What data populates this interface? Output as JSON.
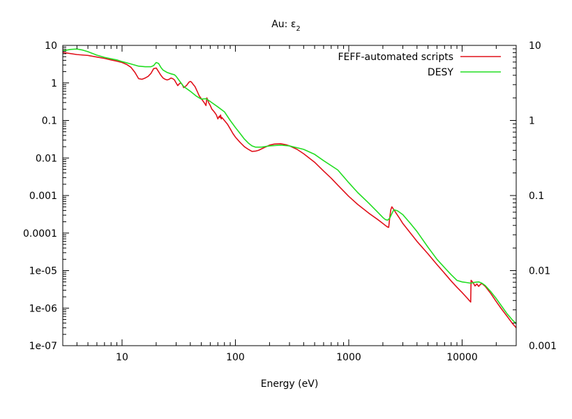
{
  "chart_data": {
    "type": "line",
    "title": "Au: ε",
    "title_subscript": "2",
    "xlabel": "Energy (eV)",
    "ylabel": "",
    "x_scale": "log",
    "y_scale": "log",
    "xlim": [
      3,
      30000
    ],
    "ylim": [
      1e-07,
      10
    ],
    "y2lim": [
      0.001,
      10
    ],
    "x_ticks": [
      {
        "value": 10,
        "label": "10"
      },
      {
        "value": 100,
        "label": "100"
      },
      {
        "value": 1000,
        "label": "1000"
      },
      {
        "value": 10000,
        "label": "10000"
      }
    ],
    "y_ticks": [
      {
        "value": 10,
        "label": "10"
      },
      {
        "value": 1,
        "label": "1"
      },
      {
        "value": 0.1,
        "label": "0.1"
      },
      {
        "value": 0.01,
        "label": "0.01"
      },
      {
        "value": 0.001,
        "label": "0.001"
      },
      {
        "value": 0.0001,
        "label": "0.0001"
      },
      {
        "value": 1e-05,
        "label": "1e-05"
      },
      {
        "value": 1e-06,
        "label": "1e-06"
      },
      {
        "value": 1e-07,
        "label": "1e-07"
      }
    ],
    "y2_ticks": [
      {
        "value": 10,
        "label": "10"
      },
      {
        "value": 1,
        "label": "1"
      },
      {
        "value": 0.1,
        "label": "0.1"
      },
      {
        "value": 0.01,
        "label": "0.01"
      },
      {
        "value": 0.001,
        "label": "0.001"
      }
    ],
    "legend_position": "top-right",
    "grid": false,
    "series": [
      {
        "name": "FEFF-automated scripts",
        "color": "#e0101a",
        "x": [
          3,
          4,
          5,
          6,
          7,
          8,
          9,
          10,
          11,
          12,
          13,
          14,
          15,
          16,
          17,
          18,
          19,
          20,
          21,
          22,
          23,
          24,
          25,
          26,
          27,
          28,
          29,
          30,
          31,
          32,
          33,
          34,
          35,
          36,
          37,
          38,
          39,
          40,
          41,
          42,
          44,
          46,
          48,
          50,
          53,
          55,
          56,
          57,
          58,
          60,
          62,
          64,
          66,
          68,
          70,
          72,
          73,
          74,
          75,
          76,
          80,
          85,
          90,
          95,
          100,
          110,
          120,
          130,
          140,
          150,
          160,
          180,
          200,
          220,
          250,
          280,
          300,
          350,
          400,
          500,
          600,
          700,
          800,
          1000,
          1200,
          1500,
          1800,
          2000,
          2100,
          2200,
          2250,
          2300,
          2350,
          2400,
          2500,
          2600,
          2800,
          3000,
          3500,
          4000,
          5000,
          6000,
          7000,
          8000,
          9000,
          10000,
          11000,
          11800,
          11900,
          12000,
          12500,
          13000,
          13500,
          14000,
          14500,
          15000,
          16000,
          18000,
          20000,
          22000,
          25000,
          28000,
          30000
        ],
        "y": [
          6.5,
          5.7,
          5.4,
          4.9,
          4.5,
          4.1,
          3.8,
          3.5,
          3.1,
          2.6,
          1.9,
          1.3,
          1.25,
          1.35,
          1.5,
          1.8,
          2.4,
          2.5,
          2.0,
          1.6,
          1.35,
          1.25,
          1.2,
          1.25,
          1.35,
          1.3,
          1.2,
          1.0,
          0.85,
          0.95,
          1.0,
          0.9,
          0.75,
          0.8,
          0.85,
          0.95,
          1.05,
          1.1,
          1.05,
          0.95,
          0.8,
          0.6,
          0.45,
          0.38,
          0.3,
          0.25,
          0.4,
          0.35,
          0.3,
          0.25,
          0.2,
          0.18,
          0.16,
          0.14,
          0.11,
          0.13,
          0.12,
          0.14,
          0.11,
          0.12,
          0.1,
          0.08,
          0.06,
          0.045,
          0.036,
          0.026,
          0.02,
          0.017,
          0.015,
          0.0152,
          0.016,
          0.019,
          0.022,
          0.0235,
          0.024,
          0.0225,
          0.021,
          0.017,
          0.013,
          0.0077,
          0.0045,
          0.0029,
          0.0019,
          0.00095,
          0.00058,
          0.00034,
          0.00023,
          0.00018,
          0.00016,
          0.000145,
          0.000142,
          0.00026,
          0.00042,
          0.0005,
          0.00042,
          0.00035,
          0.00025,
          0.00018,
          0.0001,
          6e-05,
          2.8e-05,
          1.45e-05,
          8.5e-06,
          5.3e-06,
          3.6e-06,
          2.6e-06,
          1.9e-06,
          1.5e-06,
          1.45e-06,
          5.5e-06,
          4.8e-06,
          3.9e-06,
          4.4e-06,
          3.8e-06,
          4.3e-06,
          4.5e-06,
          3.8e-06,
          2.4e-06,
          1.5e-06,
          1e-06,
          6e-07,
          3.8e-07,
          3e-07
        ]
      },
      {
        "name": "DESY",
        "color": "#22dd22",
        "x": [
          3,
          3.5,
          4,
          4.5,
          5,
          6,
          7,
          8,
          9,
          10,
          12,
          14,
          16,
          18,
          19,
          20,
          21,
          22,
          23,
          25,
          27,
          29,
          30,
          32,
          35,
          40,
          45,
          50,
          55,
          60,
          70,
          80,
          90,
          100,
          110,
          120,
          130,
          140,
          150,
          170,
          200,
          250,
          300,
          400,
          500,
          600,
          800,
          1000,
          1200,
          1500,
          1800,
          2000,
          2100,
          2200,
          2300,
          2400,
          2500,
          2700,
          3000,
          3500,
          4000,
          5000,
          6000,
          7000,
          8000,
          9000,
          10000,
          11000,
          12000,
          13000,
          14000,
          15000,
          16000,
          18000,
          20000,
          22000,
          25000,
          28000,
          30000
        ],
        "y": [
          7.2,
          7.8,
          8.0,
          7.5,
          6.8,
          5.5,
          4.8,
          4.4,
          4.1,
          3.7,
          3.2,
          2.8,
          2.7,
          2.7,
          2.9,
          3.5,
          3.3,
          2.6,
          2.2,
          1.9,
          1.75,
          1.65,
          1.5,
          1.15,
          0.8,
          0.6,
          0.45,
          0.37,
          0.38,
          0.32,
          0.23,
          0.17,
          0.1,
          0.065,
          0.045,
          0.032,
          0.025,
          0.021,
          0.0195,
          0.0195,
          0.021,
          0.022,
          0.021,
          0.017,
          0.0125,
          0.0085,
          0.0048,
          0.0022,
          0.0012,
          0.00063,
          0.00036,
          0.00026,
          0.00023,
          0.00022,
          0.00025,
          0.00033,
          0.00042,
          0.00039,
          0.00031,
          0.00018,
          0.00011,
          4.2e-05,
          2e-05,
          1.2e-05,
          7.8e-06,
          5.5e-06,
          5e-06,
          4.8e-06,
          4.6e-06,
          4.9e-06,
          5e-06,
          4.6e-06,
          4e-06,
          2.7e-06,
          1.8e-06,
          1.2e-06,
          7e-07,
          4.7e-07,
          3.9e-07
        ]
      }
    ]
  }
}
